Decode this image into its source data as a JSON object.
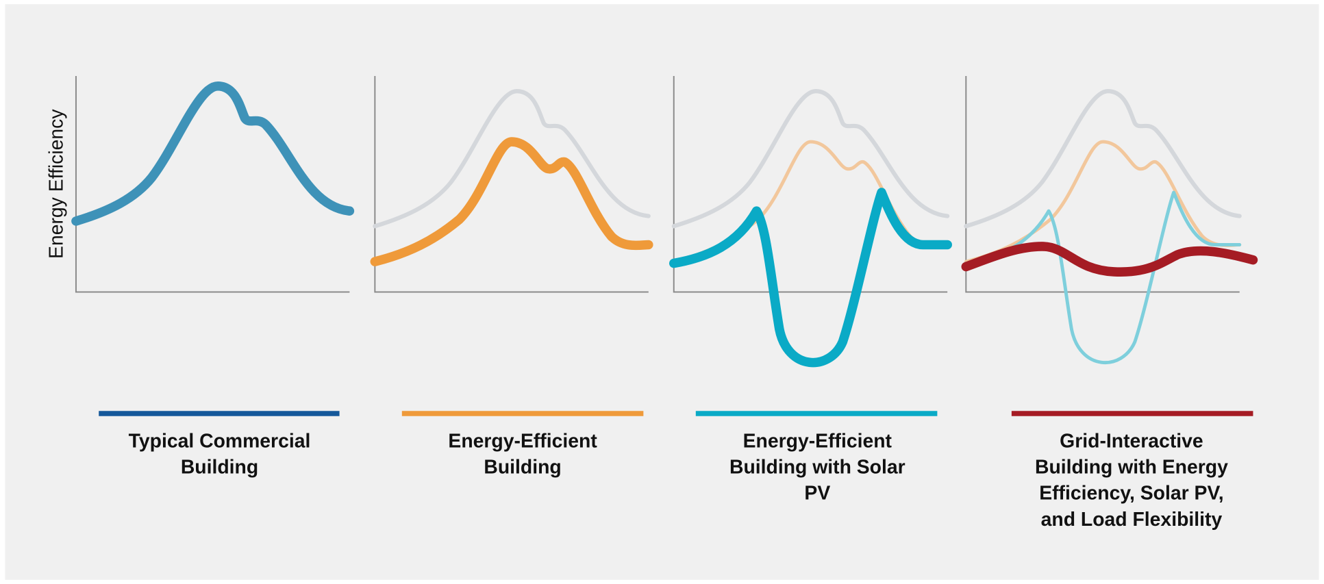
{
  "y_axis_label": "Energy Efficiency",
  "panels": [
    {
      "label_lines": [
        "Typical Commercial",
        "Building"
      ]
    },
    {
      "label_lines": [
        "Energy-Efficient",
        "Building"
      ]
    },
    {
      "label_lines": [
        "Energy-Efficient",
        "Building with Solar",
        "PV"
      ]
    },
    {
      "label_lines": [
        "Grid-Interactive",
        "Building with Energy",
        "Efficiency, Solar PV,",
        "and Load Flexibility"
      ]
    }
  ]
}
